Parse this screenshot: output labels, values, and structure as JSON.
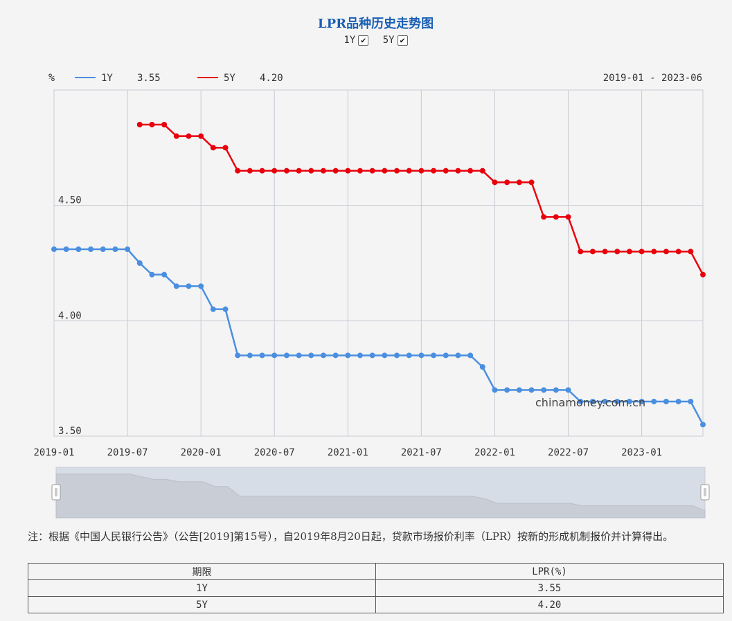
{
  "title": "LPR品种历史走势图",
  "toggles": [
    {
      "label": "1Y",
      "checked": true,
      "check_glyph": "✔"
    },
    {
      "label": "5Y",
      "checked": true,
      "check_glyph": "✔"
    }
  ],
  "date_range": "2019-01 - 2023-06",
  "watermark": "chinamoney.com.cn",
  "note": "注：根据《中国人民银行公告》（公告[2019]第15号），自2019年8月20日起，贷款市场报价利率（LPR）按新的形成机制报价并计算得出。",
  "table": {
    "headers": [
      "期限",
      "LPR(%)"
    ],
    "rows": [
      [
        "1Y",
        "3.55"
      ],
      [
        "5Y",
        "4.20"
      ]
    ]
  },
  "chart_data": {
    "type": "line",
    "unit_label": "%",
    "x_ticks": [
      "2019-01",
      "2019-07",
      "2020-01",
      "2020-07",
      "2021-01",
      "2021-07",
      "2022-01",
      "2022-07",
      "2023-01"
    ],
    "y_ticks": [
      "4.50",
      "4.00",
      "3.50"
    ],
    "ylim": [
      3.5,
      5.0
    ],
    "grid": true,
    "legend_position": "top-left",
    "x": [
      "2019-01",
      "2019-02",
      "2019-03",
      "2019-04",
      "2019-05",
      "2019-06",
      "2019-07",
      "2019-08",
      "2019-09",
      "2019-10",
      "2019-11",
      "2019-12",
      "2020-01",
      "2020-02",
      "2020-03",
      "2020-04",
      "2020-05",
      "2020-06",
      "2020-07",
      "2020-08",
      "2020-09",
      "2020-10",
      "2020-11",
      "2020-12",
      "2021-01",
      "2021-02",
      "2021-03",
      "2021-04",
      "2021-05",
      "2021-06",
      "2021-07",
      "2021-08",
      "2021-09",
      "2021-10",
      "2021-11",
      "2021-12",
      "2022-01",
      "2022-02",
      "2022-03",
      "2022-04",
      "2022-05",
      "2022-06",
      "2022-07",
      "2022-08",
      "2022-09",
      "2022-10",
      "2022-11",
      "2022-12",
      "2023-01",
      "2023-02",
      "2023-03",
      "2023-04",
      "2023-05",
      "2023-06"
    ],
    "series": [
      {
        "name": "1Y",
        "latest": "3.55",
        "color": "#4a8fe0",
        "values": [
          4.31,
          4.31,
          4.31,
          4.31,
          4.31,
          4.31,
          4.31,
          4.25,
          4.2,
          4.2,
          4.15,
          4.15,
          4.15,
          4.05,
          4.05,
          3.85,
          3.85,
          3.85,
          3.85,
          3.85,
          3.85,
          3.85,
          3.85,
          3.85,
          3.85,
          3.85,
          3.85,
          3.85,
          3.85,
          3.85,
          3.85,
          3.85,
          3.85,
          3.85,
          3.85,
          3.8,
          3.7,
          3.7,
          3.7,
          3.7,
          3.7,
          3.7,
          3.7,
          3.65,
          3.65,
          3.65,
          3.65,
          3.65,
          3.65,
          3.65,
          3.65,
          3.65,
          3.65,
          3.55
        ]
      },
      {
        "name": "5Y",
        "latest": "4.20",
        "color": "#e8000b",
        "values": [
          null,
          null,
          null,
          null,
          null,
          null,
          null,
          4.85,
          4.85,
          4.85,
          4.8,
          4.8,
          4.8,
          4.75,
          4.75,
          4.65,
          4.65,
          4.65,
          4.65,
          4.65,
          4.65,
          4.65,
          4.65,
          4.65,
          4.65,
          4.65,
          4.65,
          4.65,
          4.65,
          4.65,
          4.65,
          4.65,
          4.65,
          4.65,
          4.65,
          4.65,
          4.6,
          4.6,
          4.6,
          4.6,
          4.45,
          4.45,
          4.45,
          4.3,
          4.3,
          4.3,
          4.3,
          4.3,
          4.3,
          4.3,
          4.3,
          4.3,
          4.3,
          4.2
        ]
      }
    ]
  }
}
